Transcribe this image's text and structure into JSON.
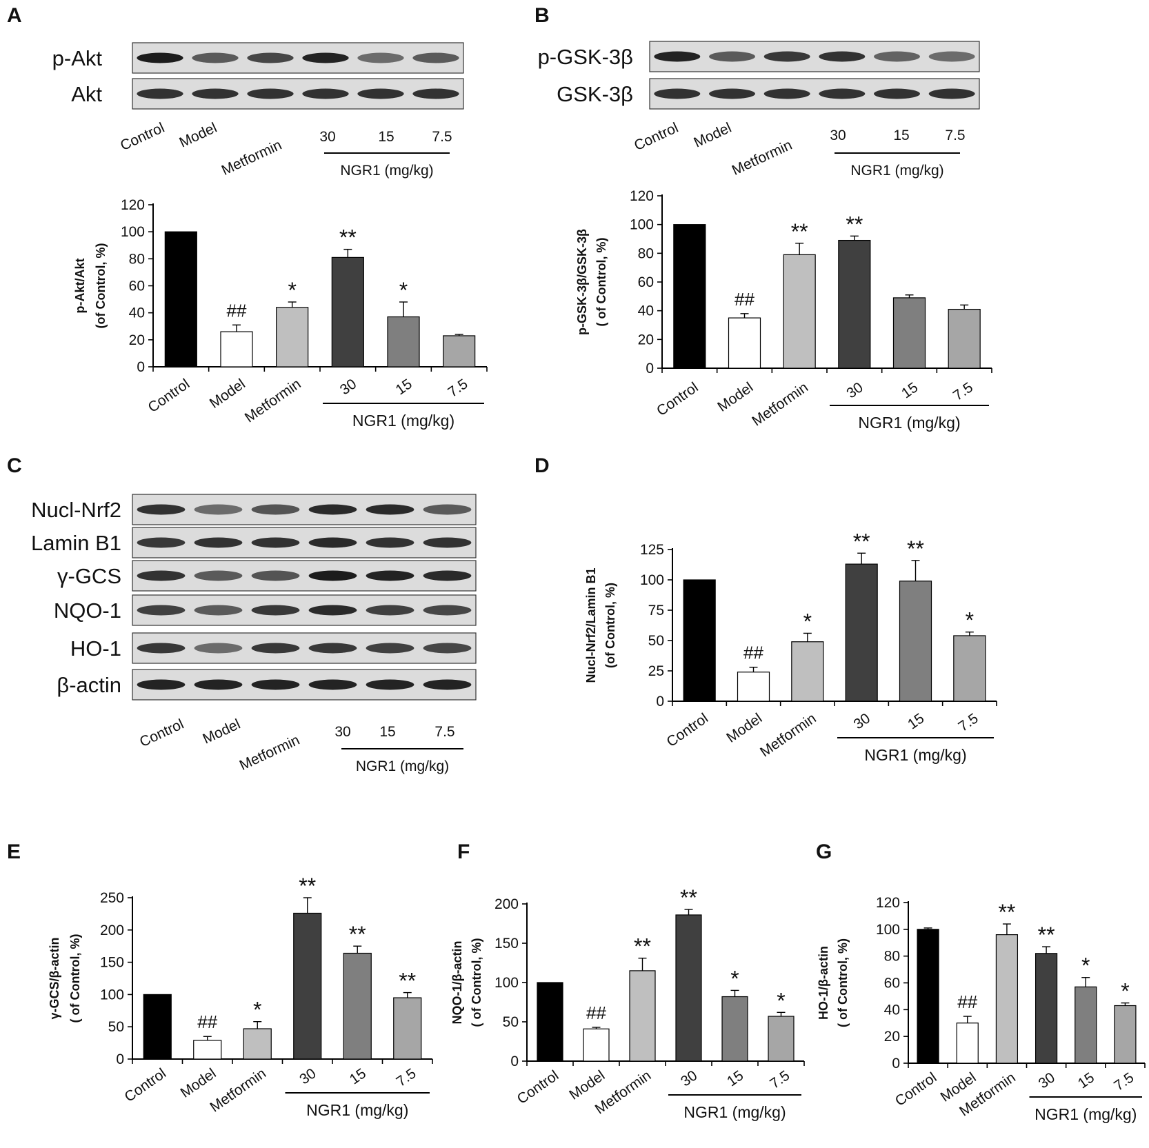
{
  "colors": {
    "control": "#000000",
    "model": "#ffffff",
    "metformin": "#bfbfbf",
    "ngr1_30": "#404040",
    "ngr1_15": "#7f7f7f",
    "ngr1_7_5": "#a6a6a6",
    "axis": "#000000",
    "blot_background": "#dcdcdc"
  },
  "group_label": "NGR1 (mg/kg)",
  "lanes": [
    "Control",
    "Model",
    "Metformin",
    "30",
    "15",
    "7.5"
  ],
  "panels": {
    "A": {
      "label": "A",
      "blots": [
        "p-Akt",
        "Akt"
      ]
    },
    "B": {
      "label": "B",
      "blots": [
        "p-GSK-3β",
        "GSK-3β"
      ]
    },
    "C": {
      "label": "C",
      "blots": [
        "Nucl-Nrf2",
        "Lamin B1",
        "γ-GCS",
        "NQO-1",
        "HO-1",
        "β-actin"
      ]
    },
    "D": {
      "label": "D"
    },
    "E": {
      "label": "E"
    },
    "F": {
      "label": "F"
    },
    "G": {
      "label": "G"
    }
  },
  "chart_data": [
    {
      "panel": "A",
      "type": "bar",
      "categories": [
        "Control",
        "Model",
        "Metformin",
        "30",
        "15",
        "7.5"
      ],
      "values": [
        100,
        26,
        44,
        81,
        37,
        23
      ],
      "errors": [
        0,
        5,
        4,
        6,
        11,
        1
      ],
      "significance": [
        "",
        "##",
        "*",
        "**",
        "*",
        ""
      ],
      "ylabel": [
        "p-Akt/Akt",
        "(of Control, %)"
      ],
      "ylim": [
        0,
        120
      ],
      "yticks": [
        0,
        20,
        40,
        60,
        80,
        100,
        120
      ],
      "group_label": "NGR1 (mg/kg)",
      "grid": false
    },
    {
      "panel": "B",
      "type": "bar",
      "categories": [
        "Control",
        "Model",
        "Metformin",
        "30",
        "15",
        "7.5"
      ],
      "values": [
        100,
        35,
        79,
        89,
        49,
        41
      ],
      "errors": [
        0,
        3,
        8,
        3,
        2,
        3
      ],
      "significance": [
        "",
        "##",
        "**",
        "**",
        "",
        ""
      ],
      "ylabel": [
        "p-GSK-3β/GSK-3β",
        "( of Control, %)"
      ],
      "ylim": [
        0,
        120
      ],
      "yticks": [
        0,
        20,
        40,
        60,
        80,
        100,
        120
      ],
      "group_label": "NGR1 (mg/kg)",
      "grid": false
    },
    {
      "panel": "D",
      "type": "bar",
      "categories": [
        "Control",
        "Model",
        "Metformin",
        "30",
        "15",
        "7.5"
      ],
      "values": [
        100,
        24,
        49,
        113,
        99,
        54
      ],
      "errors": [
        0,
        4,
        7,
        9,
        17,
        3
      ],
      "significance": [
        "",
        "##",
        "*",
        "**",
        "**",
        "*"
      ],
      "ylabel": [
        "Nucl-Nrf2/Lamin B1",
        "(of Control, %)"
      ],
      "ylim": [
        0,
        125
      ],
      "yticks": [
        0,
        25,
        50,
        75,
        100,
        125
      ],
      "group_label": "NGR1 (mg/kg)",
      "grid": false
    },
    {
      "panel": "E",
      "type": "bar",
      "categories": [
        "Control",
        "Model",
        "Metformin",
        "30",
        "15",
        "7.5"
      ],
      "values": [
        100,
        29,
        47,
        226,
        164,
        95
      ],
      "errors": [
        0,
        6,
        11,
        24,
        11,
        8
      ],
      "significance": [
        "",
        "##",
        "*",
        "**",
        "**",
        "**"
      ],
      "ylabel": [
        "γ-GCS/β-actin",
        "( of Control, %)"
      ],
      "ylim": [
        0,
        250
      ],
      "yticks": [
        0,
        50,
        100,
        150,
        200,
        250
      ],
      "group_label": "NGR1 (mg/kg)",
      "grid": false
    },
    {
      "panel": "F",
      "type": "bar",
      "categories": [
        "Control",
        "Model",
        "Metformin",
        "30",
        "15",
        "7.5"
      ],
      "values": [
        100,
        41,
        115,
        186,
        82,
        57
      ],
      "errors": [
        0,
        2,
        16,
        7,
        8,
        5
      ],
      "significance": [
        "",
        "##",
        "**",
        "**",
        "*",
        "*"
      ],
      "ylabel": [
        "NQO-1/β-actin",
        "( of Control, %)"
      ],
      "ylim": [
        0,
        200
      ],
      "yticks": [
        0,
        50,
        100,
        150,
        200
      ],
      "group_label": "NGR1 (mg/kg)",
      "grid": false
    },
    {
      "panel": "G",
      "type": "bar",
      "categories": [
        "Control",
        "Model",
        "Metformin",
        "30",
        "15",
        "7.5"
      ],
      "values": [
        100,
        30,
        96,
        82,
        57,
        43
      ],
      "errors": [
        1,
        5,
        8,
        5,
        7,
        2
      ],
      "significance": [
        "",
        "##",
        "**",
        "**",
        "*",
        "*"
      ],
      "ylabel": [
        "HO-1/β-actin",
        "( of Control, %)"
      ],
      "ylim": [
        0,
        120
      ],
      "yticks": [
        0,
        20,
        40,
        60,
        80,
        100,
        120
      ],
      "group_label": "NGR1 (mg/kg)",
      "grid": false
    }
  ]
}
